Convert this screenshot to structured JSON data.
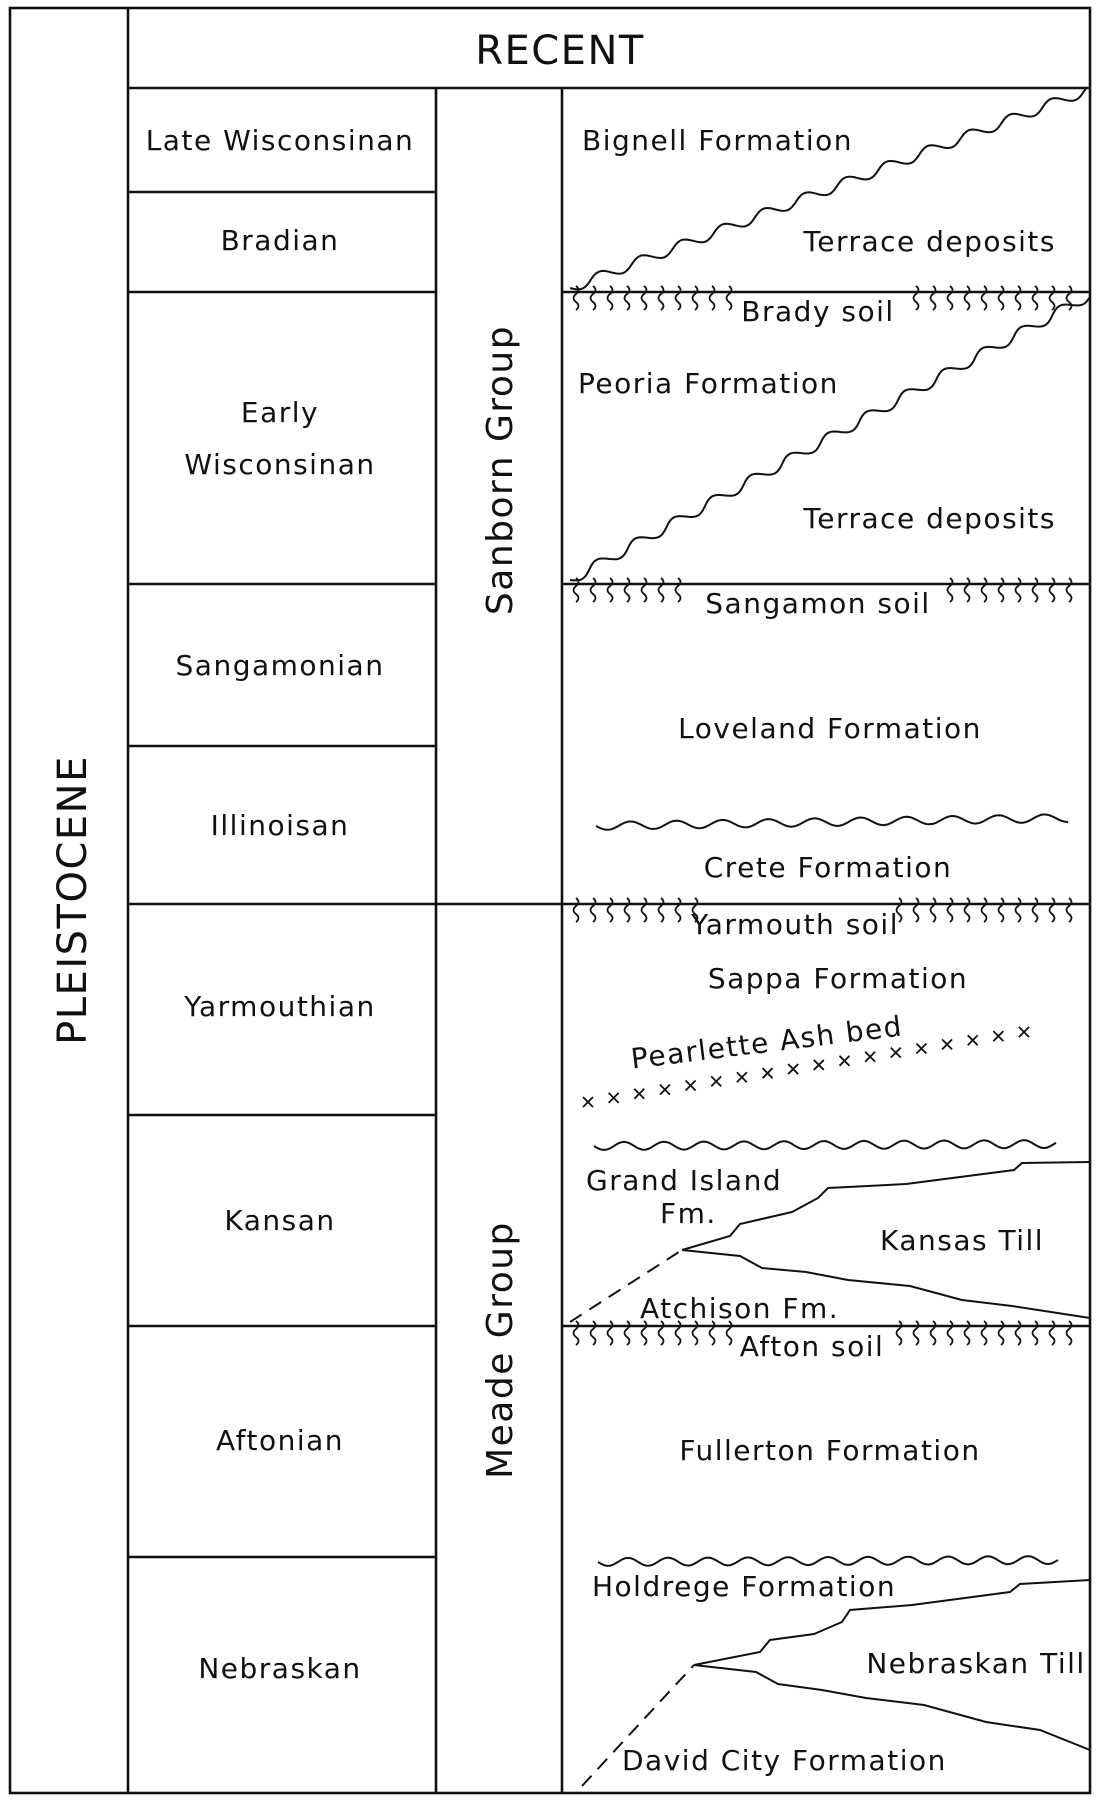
{
  "epochs": {
    "recent": "RECENT",
    "pleistocene": "PLEISTOCENE"
  },
  "stages": [
    {
      "id": "late-wisconsinan",
      "lines": [
        "Late Wisconsinan"
      ]
    },
    {
      "id": "bradian",
      "lines": [
        "Bradian"
      ]
    },
    {
      "id": "early-wisconsinan",
      "lines": [
        "Early",
        "Wisconsinan"
      ]
    },
    {
      "id": "sangamonian",
      "lines": [
        "Sangamonian"
      ]
    },
    {
      "id": "illinoisan",
      "lines": [
        "Illinoisan"
      ]
    },
    {
      "id": "yarmouthian",
      "lines": [
        "Yarmouthian"
      ]
    },
    {
      "id": "kansan",
      "lines": [
        "Kansan"
      ]
    },
    {
      "id": "aftonian",
      "lines": [
        "Aftonian"
      ]
    },
    {
      "id": "nebraskan",
      "lines": [
        "Nebraskan"
      ]
    }
  ],
  "groups": {
    "sanborn": "Sanborn Group",
    "meade": "Meade Group"
  },
  "units": {
    "bignell": "Bignell Formation",
    "terrace_upper": "Terrace deposits",
    "brady_soil": "Brady soil",
    "peoria": "Peoria Formation",
    "terrace_lower": "Terrace deposits",
    "sangamon_soil": "Sangamon soil",
    "loveland": "Loveland Formation",
    "crete": "Crete Formation",
    "yarmouth_soil": "Yarmouth soil",
    "sappa": "Sappa Formation",
    "pearlette": "Pearlette Ash bed",
    "grand_island_1": "Grand Island",
    "grand_island_2": "Fm.",
    "kansas_till": "Kansas Till",
    "atchison": "Atchison Fm.",
    "afton_soil": "Afton soil",
    "fullerton": "Fullerton Formation",
    "holdrege": "Holdrege Formation",
    "nebraskan_till": "Nebraskan Till",
    "david_city": "David City Formation"
  },
  "icons": {
    "soil_horizon": "vertical-wavy-tick-marks",
    "ash_bed": "x-crosses",
    "unconformity": "wavy-line"
  }
}
